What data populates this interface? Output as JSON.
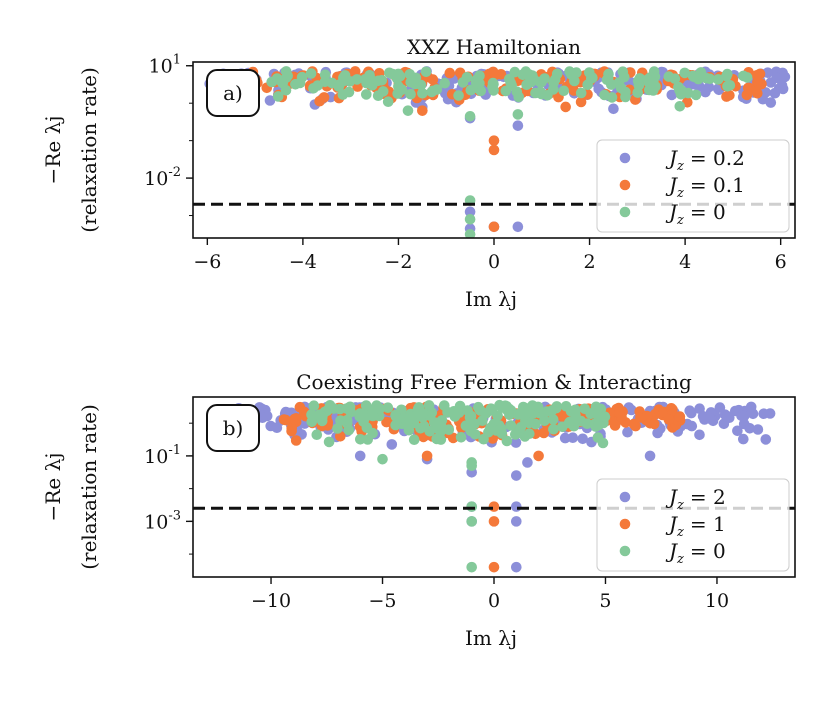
{
  "colors": {
    "purple": "#8c8fd9",
    "orange": "#f4793a",
    "green": "#84c99a",
    "reference_line": "#111111"
  },
  "chart_data": [
    {
      "type": "scatter",
      "panel_tag": "a)",
      "title": "XXZ Hamiltonian",
      "xlabel": "Im λj",
      "ylabel_line1": "−Re λj",
      "ylabel_line2": "(relaxation rate)",
      "xlim": [
        -6.3,
        6.3
      ],
      "ylim_log10": [
        -3.6,
        1.1
      ],
      "x_ticks": [
        -6,
        -4,
        -2,
        0,
        2,
        4,
        6
      ],
      "x_tick_labels": [
        "−6",
        "−4",
        "−2",
        "0",
        "2",
        "4",
        "6"
      ],
      "y_ticks_log10": [
        1,
        -2
      ],
      "y_tick_labels": [
        {
          "base": "10",
          "exp": "1"
        },
        {
          "base": "10",
          "exp": "-2"
        }
      ],
      "reference_line_log10": -2.7,
      "legend_position": "lower-right",
      "series": [
        {
          "name": "Jz = 0.2",
          "label": "= 0.2",
          "color_key": "purple",
          "band": {
            "x_range": [
              -6.0,
              6.1
            ],
            "log10_range": [
              0.0,
              0.85
            ],
            "count": 190
          },
          "dips": [
            [
              -0.5,
              -0.4
            ],
            [
              0.5,
              -0.6
            ],
            [
              -1.5,
              -0.1
            ],
            [
              2.5,
              -0.15
            ]
          ],
          "isolated": [
            [
              -0.5,
              -2.9
            ],
            [
              -0.5,
              -3.35
            ],
            [
              0.5,
              -3.3
            ],
            [
              0.0,
              -3.3
            ]
          ]
        },
        {
          "name": "Jz = 0.1",
          "label": "= 0.1",
          "color_key": "orange",
          "band": {
            "x_range": [
              -5.2,
              5.6
            ],
            "log10_range": [
              0.0,
              0.85
            ],
            "count": 170
          },
          "dips": [
            [
              0.0,
              -1.0
            ],
            [
              0.0,
              -1.25
            ],
            [
              -1.5,
              -0.2
            ],
            [
              1.5,
              -0.1
            ]
          ],
          "isolated": [
            [
              0.0,
              -3.3
            ]
          ]
        },
        {
          "name": "Jz = 0",
          "label": "= 0",
          "color_key": "green",
          "band": {
            "x_range": [
              -4.7,
              5.3
            ],
            "log10_range": [
              0.0,
              0.85
            ],
            "count": 160
          },
          "dips": [
            [
              -0.5,
              -0.35
            ],
            [
              0.5,
              -0.3
            ],
            [
              -1.8,
              -0.2
            ]
          ],
          "isolated": [
            [
              -0.5,
              -2.6
            ],
            [
              -0.5,
              -3.1
            ],
            [
              -0.5,
              -3.5
            ]
          ]
        }
      ]
    },
    {
      "type": "scatter",
      "panel_tag": "b)",
      "title": "Coexisting Free Fermion & Interacting",
      "xlabel": "Im λj",
      "ylabel_line1": "−Re λj",
      "ylabel_line2": "(relaxation rate)",
      "xlim": [
        -13.5,
        13.5
      ],
      "ylim_log10": [
        -4.7,
        0.8
      ],
      "x_ticks": [
        -10,
        -5,
        0,
        5,
        10
      ],
      "x_tick_labels": [
        "−10",
        "−5",
        "0",
        "5",
        "10"
      ],
      "y_ticks_log10": [
        -1,
        -3
      ],
      "y_tick_labels": [
        {
          "base": "10",
          "exp": "-1"
        },
        {
          "base": "10",
          "exp": "-3"
        }
      ],
      "reference_line_log10": -2.6,
      "legend_position": "lower-right",
      "series": [
        {
          "name": "Jz = 2",
          "label": "= 2",
          "color_key": "purple",
          "band": {
            "x_range": [
              -12.2,
              12.5
            ],
            "log10_range": [
              -0.6,
              0.5
            ],
            "count": 230
          },
          "dips": [
            [
              -6.0,
              -1.0
            ],
            [
              -3.0,
              -1.1
            ],
            [
              1.5,
              -1.2
            ],
            [
              7.0,
              -1.0
            ],
            [
              -1.0,
              -1.5
            ],
            [
              1.0,
              -1.6
            ]
          ],
          "isolated": [
            [
              -1.0,
              -2.55
            ],
            [
              -1.0,
              -3.0
            ],
            [
              1.0,
              -2.55
            ],
            [
              1.0,
              -3.0
            ],
            [
              1.0,
              -4.4
            ]
          ]
        },
        {
          "name": "Jz = 1",
          "label": "= 1",
          "color_key": "orange",
          "band": {
            "x_range": [
              -9.5,
              8.4
            ],
            "log10_range": [
              -0.5,
              0.5
            ],
            "count": 190
          },
          "dips": [
            [
              -3.0,
              -1.0
            ],
            [
              2.0,
              -1.0
            ]
          ],
          "isolated": [
            [
              0.0,
              -2.55
            ],
            [
              0.0,
              -3.0
            ],
            [
              0.0,
              -4.4
            ]
          ]
        },
        {
          "name": "Jz = 0",
          "label": "= 0",
          "color_key": "green",
          "band": {
            "x_range": [
              -8.2,
              5.0
            ],
            "log10_range": [
              -0.6,
              0.55
            ],
            "count": 190
          },
          "dips": [
            [
              -5.0,
              -1.1
            ],
            [
              -1.0,
              -1.2
            ],
            [
              -1.0,
              -1.3
            ]
          ],
          "isolated": [
            [
              -1.0,
              -2.55
            ],
            [
              -1.0,
              -3.0
            ],
            [
              -1.0,
              -4.4
            ]
          ]
        }
      ]
    }
  ]
}
